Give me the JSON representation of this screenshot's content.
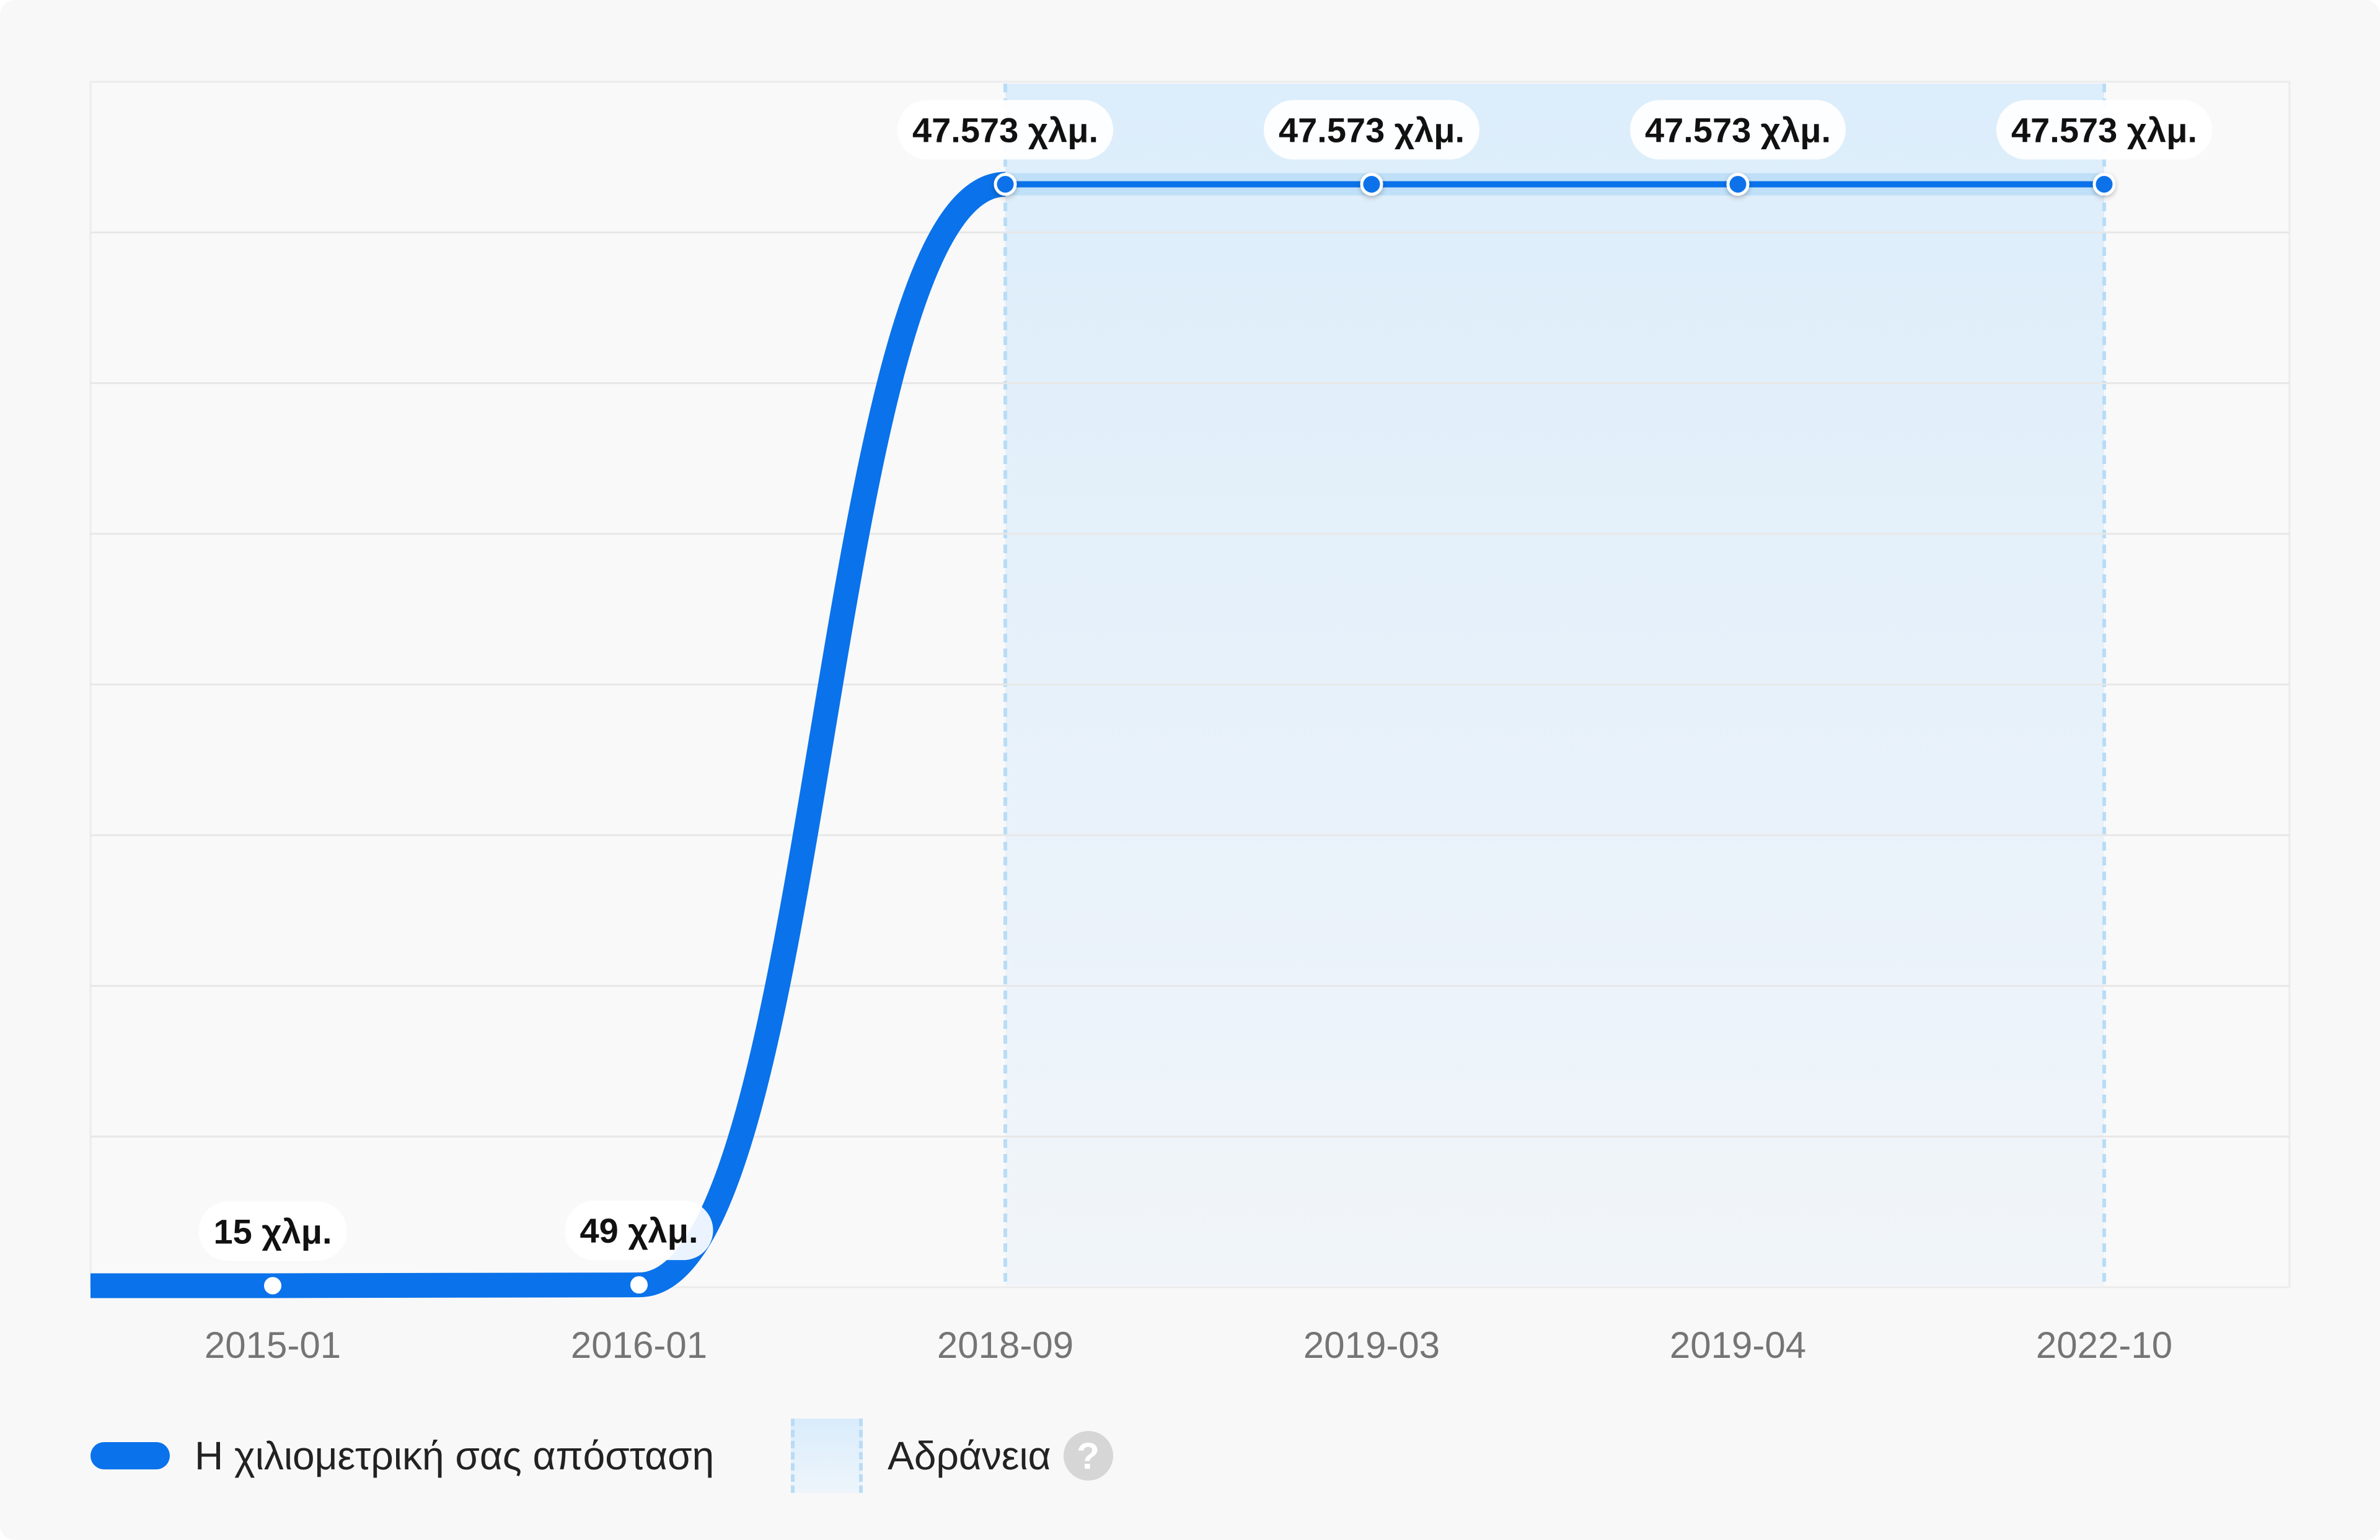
{
  "chart_data": {
    "type": "line",
    "categories": [
      "2015-01",
      "2016-01",
      "2018-09",
      "2019-03",
      "2019-04",
      "2022-10"
    ],
    "series": [
      {
        "name": "Η χιλιομετρική σας απόσταση",
        "values": [
          15,
          49,
          47573,
          47573,
          47573,
          47573
        ],
        "labels": [
          "15 χλμ.",
          "49 χλμ.",
          "47.573 χλμ.",
          "47.573 χλμ.",
          "47.573 χλμ.",
          "47.573 χλμ."
        ],
        "color": "#0a72ea"
      }
    ],
    "highlight_band": {
      "name": "Αδράνεια",
      "from": "2018-09",
      "to": "2022-10",
      "color": "#d9ecfb"
    },
    "ylim": [
      0,
      52000
    ],
    "y_gridlines": 8,
    "grid": true,
    "legend_position": "bottom-left"
  },
  "legend": {
    "mileage_label": "Η χιλιομετρική σας απόσταση",
    "inactivity_label": "Αδράνεια",
    "help_glyph": "?"
  }
}
